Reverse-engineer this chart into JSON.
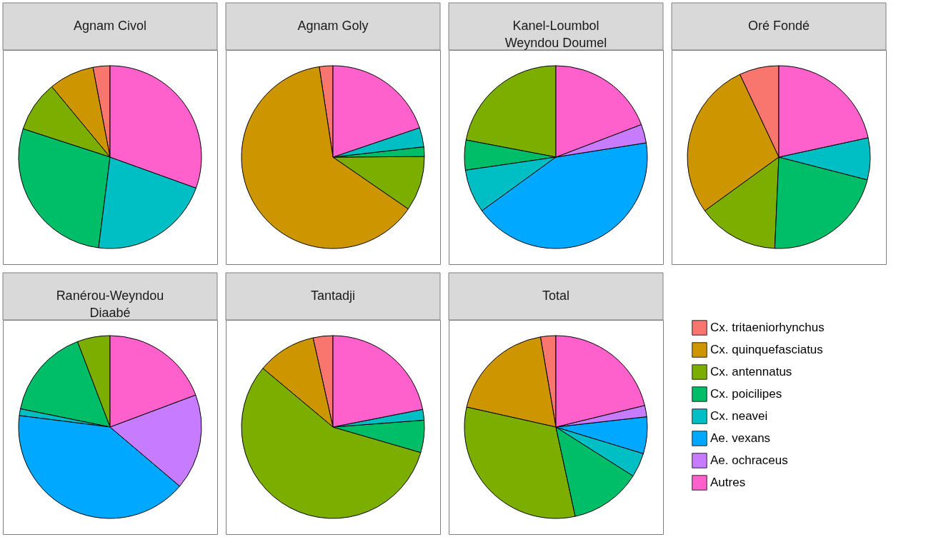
{
  "chart_data": [
    {
      "type": "pie",
      "title": "Agnam Civol",
      "categories": [
        null,
        null,
        null,
        null,
        null,
        null
      ],
      "values": [
        3,
        8,
        9,
        28,
        21.5,
        30.5
      ],
      "colors": [
        "#f8766d",
        "#cd9600",
        "#7cae00",
        "#00be67",
        "#00bfc4",
        "#ff61cc"
      ]
    },
    {
      "type": "pie",
      "title": "Agnam Goly",
      "categories": [
        null,
        null,
        null,
        null,
        null,
        null
      ],
      "values": [
        2.4,
        63,
        9.7,
        1.7,
        3.4,
        19.8
      ],
      "colors": [
        "#f8766d",
        "#cd9600",
        "#7cae00",
        "#00be67",
        "#00bfc4",
        "#ff61cc"
      ]
    },
    {
      "type": "pie",
      "title": "Kanel-Loumbol Weyndou Doumel",
      "categories": [
        null,
        null,
        null,
        null,
        null,
        null
      ],
      "values": [
        22,
        5.3,
        7.7,
        42.5,
        3.3,
        19.2
      ],
      "colors": [
        "#7cae00",
        "#00be67",
        "#00bfc4",
        "#00a9ff",
        "#c77cff",
        "#ff61cc"
      ]
    },
    {
      "type": "pie",
      "title": "Oré Fondé",
      "categories": [
        null,
        null,
        null,
        null,
        null,
        null
      ],
      "values": [
        7,
        28,
        14.3,
        21.7,
        7.4,
        21.6
      ],
      "colors": [
        "#f8766d",
        "#cd9600",
        "#7cae00",
        "#00be67",
        "#00bfc4",
        "#ff61cc"
      ]
    },
    {
      "type": "pie",
      "title": "Ranérou-Weyndou Diaabé",
      "categories": [
        null,
        null,
        null,
        null,
        null,
        null
      ],
      "values": [
        5.8,
        16,
        1.2,
        40.8,
        16.9,
        19.3
      ],
      "colors": [
        "#7cae00",
        "#00be67",
        "#00bfc4",
        "#00a9ff",
        "#c77cff",
        "#ff61cc"
      ]
    },
    {
      "type": "pie",
      "title": "Tantadji",
      "categories": [
        null,
        null,
        null,
        null,
        null,
        null
      ],
      "values": [
        3.5,
        10.4,
        56.6,
        5.7,
        1.9,
        21.9
      ],
      "colors": [
        "#f8766d",
        "#cd9600",
        "#7cae00",
        "#00be67",
        "#00bfc4",
        "#ff61cc"
      ]
    },
    {
      "type": "pie",
      "title": "Total",
      "categories": [
        "Cx. tritaeniorhynchus",
        "Cx. quinquefasciatus",
        "Cx. antennatus",
        "Cx. poicilipes",
        "Cx. neavei",
        "Ae. vexans",
        "Ae. ochraceus",
        "Autres"
      ],
      "values": [
        2.7,
        18.8,
        31.9,
        12.6,
        4.3,
        6.5,
        2,
        21.2
      ],
      "colors": [
        "#f8766d",
        "#cd9600",
        "#7cae00",
        "#00be67",
        "#00bfc4",
        "#00a9ff",
        "#c77cff",
        "#ff61cc"
      ],
      "legend": "right"
    }
  ]
}
